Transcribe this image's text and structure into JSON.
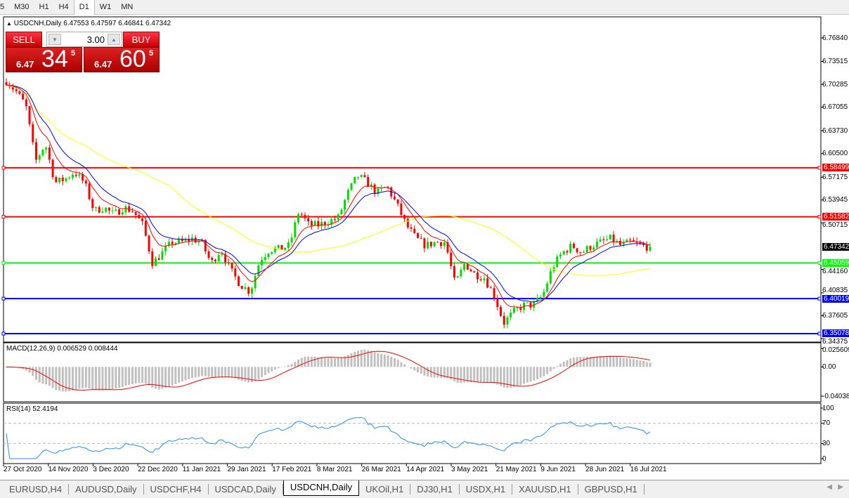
{
  "toolbar": {
    "timeframes": [
      "5",
      "M30",
      "H1",
      "H4",
      "D1",
      "W1",
      "MN"
    ],
    "active": "D1"
  },
  "symbol_info": {
    "arrow": "▲",
    "text": "USDCNH,Daily  6.47553 6.47597 6.46841 6.47342"
  },
  "trade_panel": {
    "sell_label": "SELL",
    "buy_label": "BUY",
    "lot": "3.00",
    "sell_price": {
      "prefix": "6.47",
      "big": "34",
      "sup": "5"
    },
    "buy_price": {
      "prefix": "6.47",
      "big": "60",
      "sup": "5"
    }
  },
  "price_axis": [
    "6.76840",
    "6.73515",
    "6.70285",
    "6.67055",
    "6.63730",
    "6.60500",
    "6.57175",
    "6.53945",
    "6.50715",
    "6.44160",
    "6.40835",
    "6.37605",
    "6.34375"
  ],
  "levels": [
    {
      "value": "6.58499",
      "color": "#ff0000"
    },
    {
      "value": "6.51582",
      "color": "#ff0000"
    },
    {
      "value": "6.45059",
      "color": "#00ff00"
    },
    {
      "value": "6.40019",
      "color": "#0000ff"
    },
    {
      "value": "6.35078",
      "color": "#0000ff"
    }
  ],
  "current_price": "6.47342",
  "macd": {
    "label": "MACD(12,26,9) 0.006529 0.008444",
    "axis": [
      "0.025609",
      "0.00",
      "-0.040380"
    ]
  },
  "rsi": {
    "label": "RSI(14) 52.4194",
    "axis": [
      "100",
      "70",
      "30",
      "0"
    ]
  },
  "date_axis": [
    "27 Oct 2020",
    "14 Nov 2020",
    "3 Dec 2020",
    "22 Dec 2020",
    "11 Jan 2021",
    "29 Jan 2021",
    "17 Feb 2021",
    "8 Mar 2021",
    "26 Mar 2021",
    "14 Apr 2021",
    "3 May 2021",
    "21 May 2021",
    "9 Jun 2021",
    "28 Jun 2021",
    "16 Jul 2021"
  ],
  "tabs": [
    "EURUSD,H4",
    "AUDUSD,Daily",
    "USDCHF,H4",
    "USDCAD,Daily",
    "USDCNH,Daily",
    "UKOil,H1",
    "DJ30,H1",
    "USDX,H1",
    "XAUUSD,H1",
    "GBPUSD,H1"
  ],
  "active_tab": "USDCNH,Daily",
  "colors": {
    "bull": "#00dd00",
    "bear": "#ff0000",
    "ma_fast": "#ff0000",
    "ma_mid": "#0000ff",
    "ma_slow": "#ffff00",
    "macd_signal": "#ff0000",
    "macd_hist": "#c0c0c0",
    "rsi": "#1e90ff"
  },
  "chart_data": {
    "type": "candlestick",
    "symbol": "USDCNH",
    "timeframe": "Daily",
    "ylim": [
      6.34375,
      6.7984
    ],
    "closes_sampled": [
      6.708,
      6.693,
      6.673,
      6.594,
      6.619,
      6.564,
      6.569,
      6.579,
      6.564,
      6.524,
      6.529,
      6.519,
      6.529,
      6.524,
      6.504,
      6.45,
      6.465,
      6.48,
      6.48,
      6.485,
      6.48,
      6.45,
      6.47,
      6.44,
      6.42,
      6.41,
      6.455,
      6.47,
      6.47,
      6.475,
      6.524,
      6.504,
      6.504,
      6.509,
      6.514,
      6.549,
      6.574,
      6.564,
      6.549,
      6.559,
      6.534,
      6.504,
      6.485,
      6.475,
      6.48,
      6.48,
      6.42,
      6.45,
      6.435,
      6.43,
      6.405,
      6.366,
      6.381,
      6.391,
      6.391,
      6.405,
      6.445,
      6.465,
      6.475,
      6.465,
      6.475,
      6.48,
      6.485,
      6.475,
      6.48,
      6.475,
      6.473
    ],
    "bars": 195
  }
}
